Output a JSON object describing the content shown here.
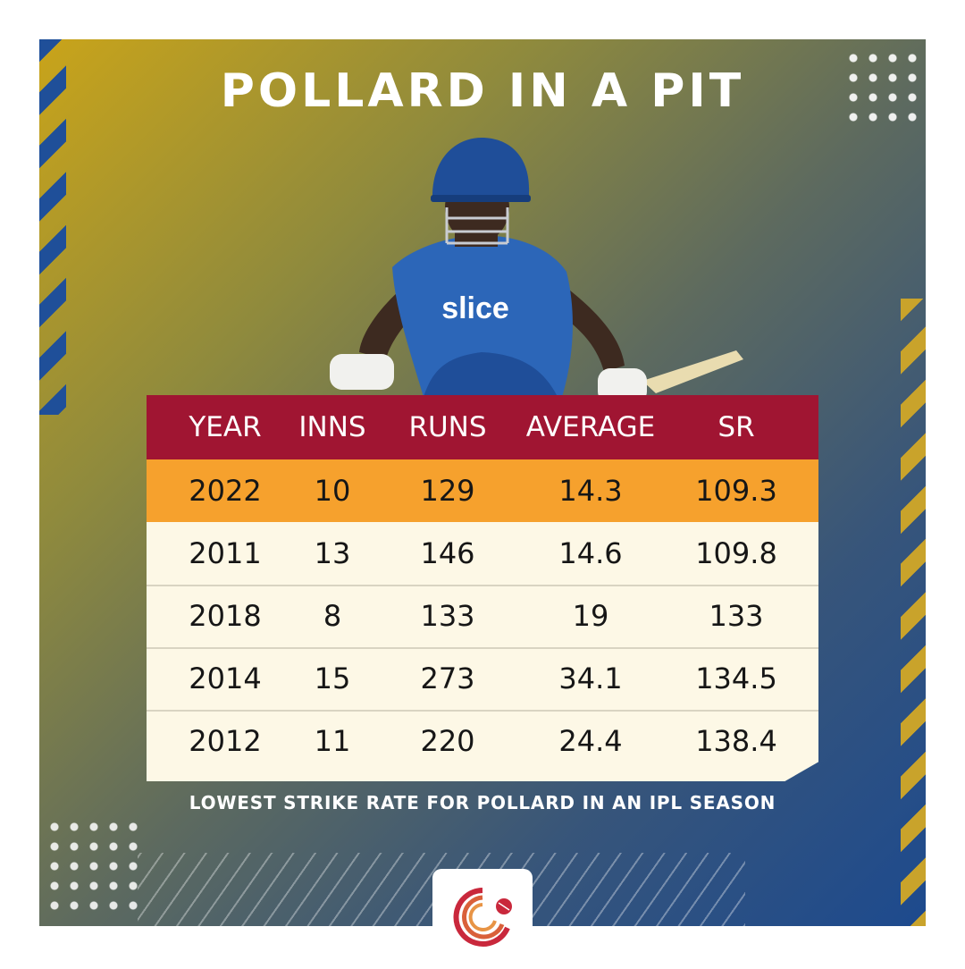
{
  "title": "POLLARD IN A PIT",
  "player_image": {
    "icon": "player-photo",
    "jersey_text": "slice",
    "team_colors": {
      "jersey": "#2c66b8",
      "helmet": "#1f4e99",
      "bat": "#e9dcb0"
    }
  },
  "table": {
    "headers": [
      "YEAR",
      "INNS",
      "RUNS",
      "AVERAGE",
      "SR"
    ],
    "rows": [
      [
        "2022",
        "10",
        "129",
        "14.3",
        "109.3"
      ],
      [
        "2011",
        "13",
        "146",
        "14.6",
        "109.8"
      ],
      [
        "2018",
        "8",
        "133",
        "19",
        "133"
      ],
      [
        "2014",
        "15",
        "273",
        "34.1",
        "134.5"
      ],
      [
        "2012",
        "11",
        "220",
        "24.4",
        "138.4"
      ]
    ],
    "highlight_row": 0,
    "colors": {
      "header_bg": "#a01532",
      "highlight_bg": "#f6a12d",
      "row_bg": "#fdf8e6"
    }
  },
  "caption": "LOWEST STRIKE RATE FOR POLLARD IN AN IPL SEASON",
  "logo": {
    "icon": "cricket-ball-logo-icon"
  }
}
